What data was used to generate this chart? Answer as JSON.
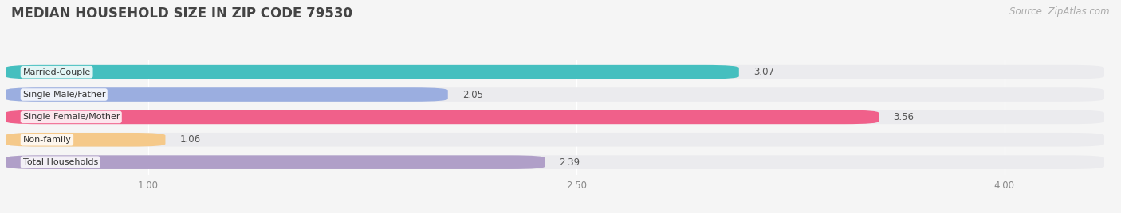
{
  "title": "MEDIAN HOUSEHOLD SIZE IN ZIP CODE 79530",
  "source": "Source: ZipAtlas.com",
  "categories": [
    "Married-Couple",
    "Single Male/Father",
    "Single Female/Mother",
    "Non-family",
    "Total Households"
  ],
  "values": [
    3.07,
    2.05,
    3.56,
    1.06,
    2.39
  ],
  "bar_colors": [
    "#45bfbf",
    "#9baee0",
    "#f0608a",
    "#f5c98a",
    "#b09fc8"
  ],
  "xlim_min": 0.5,
  "xlim_max": 4.35,
  "xstart": 0.5,
  "xticks": [
    1.0,
    2.5,
    4.0
  ],
  "title_fontsize": 12,
  "source_fontsize": 8.5,
  "label_fontsize": 8,
  "value_fontsize": 8.5,
  "bar_height": 0.62,
  "background_color": "#f5f5f5",
  "bar_bg_color": "#ebebee"
}
